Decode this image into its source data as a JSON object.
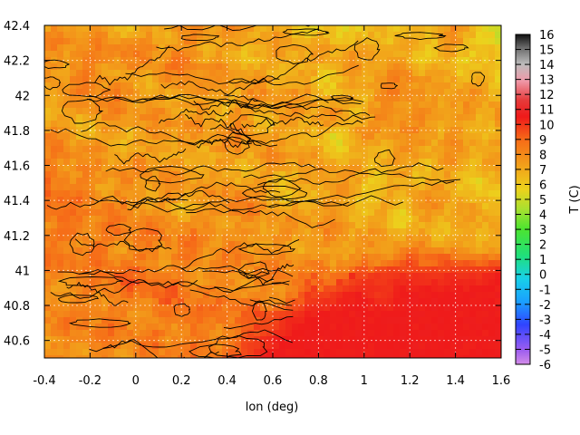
{
  "chart_data": {
    "type": "heatmap",
    "xlabel": "lon (deg)",
    "ylabel": "",
    "xlim": [
      -0.4,
      1.6
    ],
    "ylim": [
      40.5,
      42.4
    ],
    "x_ticks": [
      -0.4,
      -0.2,
      0,
      0.2,
      0.4,
      0.6,
      0.8,
      1,
      1.2,
      1.4,
      1.6
    ],
    "x_tick_labels": [
      "-0.4",
      "-0.2",
      "0",
      "0.2",
      "0.4",
      "0.6",
      "0.8",
      "1",
      "1.2",
      "1.4",
      "1.6"
    ],
    "y_ticks": [
      40.6,
      40.8,
      41,
      41.2,
      41.4,
      41.6,
      41.8,
      42,
      42.2,
      42.4
    ],
    "y_tick_labels": [
      "40.6",
      "40.8",
      "41",
      "41.2",
      "41.4",
      "41.6",
      "41.8",
      "42",
      "42.2",
      "42.4"
    ],
    "grid": true,
    "colorbar": {
      "label": "T (C)",
      "range": [
        -6,
        16
      ],
      "ticks": [
        -6,
        -5,
        -4,
        -3,
        -2,
        -1,
        0,
        1,
        2,
        3,
        4,
        5,
        6,
        7,
        8,
        9,
        10,
        11,
        12,
        13,
        14,
        15,
        16
      ],
      "tick_labels": [
        "-6",
        "-5",
        "-4",
        "-3",
        "-2",
        "-1",
        "0",
        "1",
        "2",
        "3",
        "4",
        "5",
        "6",
        "7",
        "8",
        "9",
        "10",
        "11",
        "12",
        "13",
        "14",
        "15",
        "16"
      ],
      "placement": "right"
    },
    "description": "Surface temperature field with terrain contour lines; warmest values (about 10-11 C) over the sea in the southeast, 5-9 C over land, with small cooler patches of 3-5 C in the interior and northeast.",
    "overlay": "black contour lines",
    "grid_values_C": [
      [
        7,
        7,
        7.5,
        6.5,
        7,
        7.5,
        8,
        7,
        7.5,
        7,
        6.5,
        6,
        6.5,
        6,
        6.5,
        6,
        6.5,
        7.5,
        6.5,
        4.5
      ],
      [
        8,
        8,
        7.5,
        8,
        8,
        7.5,
        8,
        7.5,
        7,
        7,
        7.5,
        6.5,
        7,
        7,
        7.5,
        7,
        6.5,
        7,
        6,
        5
      ],
      [
        7.5,
        8,
        8.5,
        7.5,
        7.5,
        8,
        8,
        7.5,
        7.5,
        7,
        7,
        7,
        6.5,
        7,
        7,
        7.5,
        7,
        7,
        6.5,
        6.5
      ],
      [
        7,
        7.5,
        8,
        8,
        7.5,
        7,
        8,
        7.5,
        7,
        7.5,
        7,
        7.5,
        6.5,
        7.5,
        8,
        8.5,
        7,
        7.5,
        7,
        7
      ],
      [
        7.5,
        7,
        7.5,
        8,
        7.5,
        7.5,
        7.5,
        7,
        8,
        7,
        7.5,
        7,
        7.5,
        6.5,
        7.5,
        8,
        8,
        7.5,
        7,
        7.5
      ],
      [
        8,
        7.5,
        7,
        7.5,
        7,
        8,
        7,
        7.5,
        7.5,
        7.5,
        7,
        7.5,
        5.5,
        7.5,
        7,
        7.5,
        7,
        7.5,
        7.5,
        7
      ],
      [
        8,
        8,
        7.5,
        7,
        7.5,
        7.5,
        7,
        7.5,
        7,
        7,
        7.5,
        7,
        7,
        7,
        7.5,
        7.5,
        7,
        7.5,
        6.5,
        7
      ],
      [
        9,
        8.5,
        8,
        8,
        7.5,
        7.5,
        7.5,
        7,
        7.5,
        7.5,
        7,
        7,
        7.5,
        6.5,
        5.5,
        7,
        7,
        7.5,
        5.5,
        7
      ],
      [
        9,
        8.5,
        8,
        8,
        8,
        7.5,
        7,
        7.5,
        8.5,
        7.5,
        6.5,
        7,
        8,
        7,
        7,
        6.5,
        7.5,
        7,
        6.5,
        6.5
      ],
      [
        8.5,
        9,
        8,
        8.5,
        8,
        8,
        8,
        8,
        7.5,
        8,
        7.5,
        7.5,
        7.5,
        7,
        7,
        6.5,
        7,
        7,
        7,
        7
      ],
      [
        8.5,
        8,
        9,
        8,
        8.5,
        8,
        8.5,
        7.5,
        8,
        7.5,
        8,
        7.5,
        7.5,
        7.5,
        7,
        7.5,
        8,
        7.5,
        7.5,
        7.5
      ],
      [
        8,
        8.5,
        8,
        9,
        8.5,
        8.5,
        8,
        8.5,
        8,
        8,
        8,
        8,
        8.5,
        9.5,
        10,
        10,
        10,
        10,
        10,
        10.5
      ],
      [
        8,
        8,
        8.5,
        8.5,
        8.5,
        9,
        8.5,
        8,
        8.5,
        8,
        8.5,
        9.5,
        10,
        10.5,
        10,
        10.5,
        10.5,
        10.5,
        10.5,
        10.5
      ],
      [
        8,
        8,
        8,
        8.5,
        8,
        8.5,
        9,
        8.5,
        8.5,
        9,
        10,
        10.5,
        10.5,
        10.5,
        10.5,
        10.5,
        10.5,
        10.5,
        10.5,
        10.5
      ],
      [
        8,
        8,
        8.5,
        8,
        8.5,
        8,
        8.5,
        8.5,
        9,
        10,
        10.5,
        10.5,
        10.5,
        10.5,
        10.5,
        10.5,
        10.5,
        10.5,
        10.5,
        10.5
      ],
      [
        7.5,
        8,
        8,
        8,
        8,
        8.5,
        8,
        8.5,
        9.5,
        10.5,
        10.5,
        10.5,
        10.5,
        10.5,
        10.5,
        10.5,
        10.5,
        10.5,
        10.5,
        10.5
      ]
    ]
  }
}
